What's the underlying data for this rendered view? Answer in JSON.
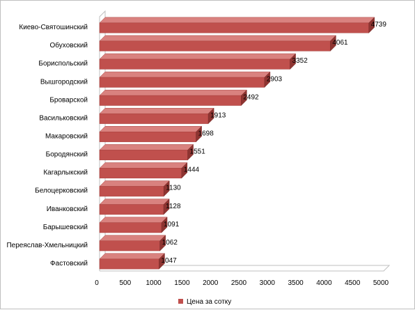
{
  "chart_data": {
    "type": "bar",
    "orientation": "horizontal",
    "style": "3d",
    "title": "",
    "xlabel": "",
    "ylabel": "",
    "categories": [
      "Киево-Святошинский",
      "Обуховский",
      "Бориспольский",
      "Вышгородский",
      "Броварской",
      "Васильковский",
      "Макаровский",
      "Бородянский",
      "Кагарлыкский",
      "Белоцерковский",
      "Иванковский",
      "Барышевский",
      "Переяслав-Хмельницкий",
      "Фастовский"
    ],
    "series": [
      {
        "name": "Цена за сотку",
        "color": "#c0504d",
        "values": [
          4739,
          4061,
          3352,
          2903,
          2492,
          1913,
          1698,
          1551,
          1444,
          1130,
          1128,
          1091,
          1062,
          1047
        ],
        "labels": [
          "4739",
          "4061",
          "3352",
          "2903",
          "2492",
          "1913",
          "1698",
          "1551",
          "1444",
          "1130",
          "1128",
          "1091",
          "1062",
          "1047"
        ]
      }
    ],
    "xlim": [
      0,
      5000
    ],
    "xticks": [
      "0",
      "500",
      "1000",
      "1500",
      "2000",
      "2500",
      "3000",
      "3500",
      "4000",
      "4500",
      "5000"
    ],
    "grid": false,
    "legend": "bottom"
  }
}
